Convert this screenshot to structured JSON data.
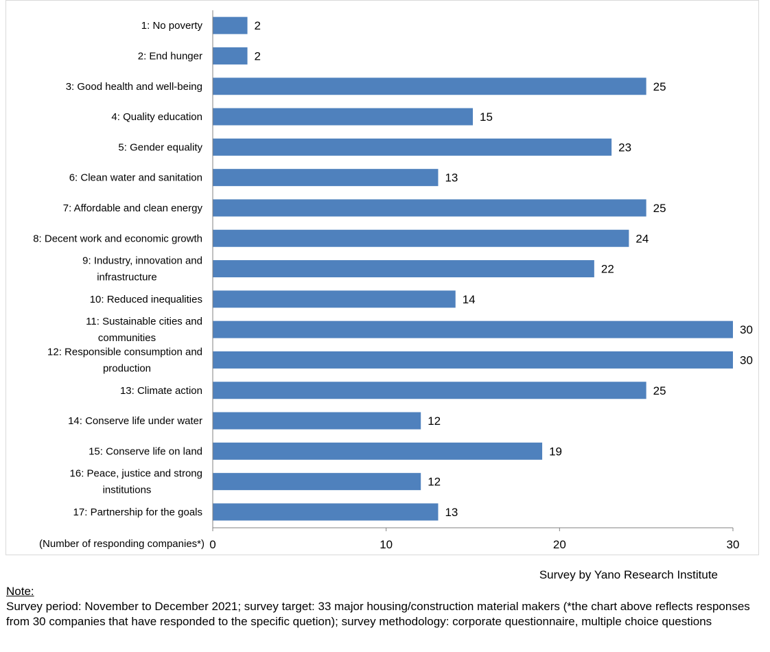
{
  "chart_data": {
    "type": "bar",
    "orientation": "horizontal",
    "categories": [
      [
        "1: No poverty"
      ],
      [
        "2: End hunger"
      ],
      [
        "3: Good health and well-being"
      ],
      [
        "4: Quality education"
      ],
      [
        "5: Gender equality"
      ],
      [
        "6: Clean water and sanitation"
      ],
      [
        "7: Affordable and clean energy"
      ],
      [
        "8: Decent work and economic growth"
      ],
      [
        "9: Industry, innovation and",
        "infrastructure"
      ],
      [
        "10: Reduced inequalities"
      ],
      [
        "11: Sustainable cities and",
        "communities"
      ],
      [
        "12: Responsible consumption and",
        "production"
      ],
      [
        "13: Climate action"
      ],
      [
        "14: Conserve life under water"
      ],
      [
        "15: Conserve life on land"
      ],
      [
        "16: Peace, justice and strong",
        "institutions"
      ],
      [
        "17: Partnership for the goals"
      ]
    ],
    "values": [
      2,
      2,
      25,
      15,
      23,
      13,
      25,
      24,
      22,
      14,
      30,
      30,
      25,
      12,
      19,
      12,
      13
    ],
    "xlabel": "(Number of responding companies*)",
    "xlim": [
      0,
      30
    ],
    "xticks": [
      0,
      10,
      20,
      30
    ],
    "bar_color": "#4f81bd",
    "grid": false
  },
  "credit": "Survey by Yano Research Institute",
  "note": {
    "title": "Note:",
    "body": "Survey period: November to December 2021; survey target: 33 major housing/construction material makers (*the chart above reflects responses from 30 companies that have responded to the specific quetion); survey methodology: corporate questionnaire, multiple choice questions"
  }
}
